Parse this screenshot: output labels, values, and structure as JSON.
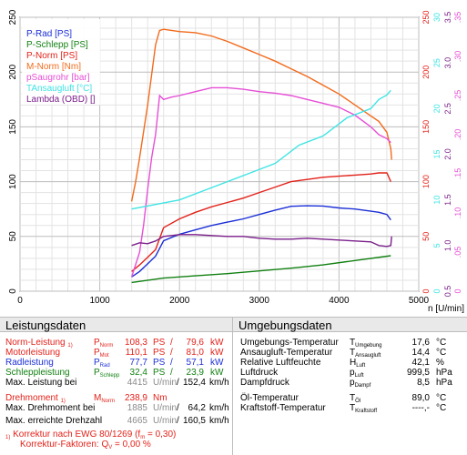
{
  "colors": {
    "rad": "#1b2fd6",
    "schlepp": "#128012",
    "norm": "#e32119",
    "mot": "#f26a1b",
    "saug": "#e64fd6",
    "ansaug": "#3fe4e4",
    "lambda": "#7a1f8a"
  },
  "chart_data": {
    "type": "line",
    "xlabel": "n [U/min]",
    "xlim": [
      0,
      5000
    ],
    "x_ticks": [
      "0",
      "1000",
      "2000",
      "3000",
      "4000",
      "5000"
    ],
    "ylim": [
      0,
      250
    ],
    "y_ticks": [
      "0",
      "50",
      "100",
      "150",
      "200",
      "250"
    ],
    "right_axes": [
      {
        "name": "P-Norm/M-Norm",
        "color": "#e32119",
        "ticks": [
          "0",
          "50",
          "100",
          "150",
          "200",
          "250"
        ]
      },
      {
        "name": "T Ansaugluft",
        "color": "#3fe4e4",
        "ticks": [
          "0",
          "5",
          "10",
          "15",
          "20",
          "25",
          "30"
        ]
      },
      {
        "name": "Lambda",
        "color": "#7a1f8a",
        "ticks": [
          "0.5",
          "1.0",
          "1.5",
          "2.0",
          "2.5",
          "3.0",
          "3.5"
        ]
      },
      {
        "name": "P Saugrohr",
        "color": "#e64fd6",
        "ticks": [
          "0",
          ".05",
          ".10",
          ".15",
          ".20",
          ".25",
          ".30",
          ".35"
        ]
      }
    ],
    "legend": [
      {
        "text": "P-Rad [PS]",
        "color": "#1b2fd6"
      },
      {
        "text": "P-Schlepp [PS]",
        "color": "#128012"
      },
      {
        "text": "P-Norm [PS]",
        "color": "#e32119"
      },
      {
        "text": "M-Norm [Nm]",
        "color": "#f26a1b"
      },
      {
        "text": "pSaugrohr [bar]",
        "color": "#e64fd6"
      },
      {
        "text": "TAnsaugluft [°C]",
        "color": "#3fe4e4"
      },
      {
        "text": "Lambda (OBD) []",
        "color": "#7a1f8a"
      }
    ],
    "legend_position": "top-left",
    "grid": true,
    "series": [
      {
        "name": "P-Rad [PS]",
        "key": "rad",
        "x": [
          1400,
          1500,
          1600,
          1700,
          1800,
          2000,
          2200,
          2400,
          2600,
          2800,
          3000,
          3200,
          3400,
          3600,
          3800,
          4000,
          4200,
          4400,
          4500,
          4600,
          4650
        ],
        "y": [
          13,
          18,
          25,
          32,
          46,
          52,
          56,
          60,
          63,
          66,
          70,
          74,
          77.5,
          78,
          77.7,
          76,
          75,
          73,
          72,
          70,
          65
        ]
      },
      {
        "name": "P-Schlepp [PS]",
        "key": "schlepp",
        "x": [
          1400,
          1800,
          2200,
          2600,
          3000,
          3400,
          3800,
          4200,
          4650
        ],
        "y": [
          8,
          12,
          14,
          16,
          18.5,
          21,
          24,
          28,
          32.4
        ]
      },
      {
        "name": "P-Norm [PS]",
        "key": "norm",
        "x": [
          1400,
          1500,
          1600,
          1700,
          1800,
          2000,
          2200,
          2400,
          2600,
          2800,
          3000,
          3200,
          3400,
          3600,
          3800,
          4000,
          4200,
          4400,
          4500,
          4600,
          4650
        ],
        "y": [
          18,
          24,
          31,
          38,
          58,
          66,
          72,
          77,
          81,
          85,
          90,
          95,
          100,
          102,
          104,
          105,
          106,
          107,
          108,
          108,
          100
        ]
      },
      {
        "name": "M-Norm [Nm]",
        "key": "mot",
        "x": [
          1400,
          1450,
          1500,
          1600,
          1700,
          1750,
          1800,
          1900,
          2000,
          2200,
          2400,
          2600,
          2800,
          3000,
          3200,
          3400,
          3600,
          3800,
          4000,
          4200,
          4400,
          4500,
          4600,
          4650,
          4660
        ],
        "y": [
          82,
          100,
          122,
          170,
          225,
          238,
          239,
          238,
          237,
          236,
          233,
          228,
          222,
          216,
          210,
          203,
          196,
          188,
          180,
          170,
          160,
          155,
          145,
          130,
          120
        ]
      },
      {
        "name": "pSaugrohr [bar]",
        "key": "saug",
        "x": [
          1400,
          1500,
          1550,
          1600,
          1650,
          1700,
          1750,
          1800,
          1900,
          2000,
          2200,
          2400,
          2600,
          2800,
          3000,
          3200,
          3400,
          3600,
          3800,
          4000,
          4200,
          4400,
          4500,
          4600,
          4650
        ],
        "y": [
          0.018,
          0.05,
          0.085,
          0.13,
          0.17,
          0.2,
          0.25,
          0.245,
          0.248,
          0.25,
          0.255,
          0.26,
          0.26,
          0.258,
          0.255,
          0.253,
          0.25,
          0.245,
          0.24,
          0.235,
          0.225,
          0.21,
          0.2,
          0.195,
          0.19
        ]
      },
      {
        "name": "TAnsaugluft [°C]",
        "key": "ansaug",
        "x": [
          1400,
          1700,
          2000,
          2300,
          2600,
          2900,
          3200,
          3500,
          3800,
          4100,
          4400,
          4500,
          4600,
          4650
        ],
        "y": [
          9,
          9.5,
          10,
          11,
          12,
          13,
          14,
          16,
          17,
          19,
          20,
          21,
          21.5,
          22
        ]
      },
      {
        "name": "Lambda (OBD) []",
        "key": "lambda",
        "x": [
          1400,
          1500,
          1600,
          1700,
          1800,
          2000,
          2200,
          2400,
          2600,
          2800,
          3000,
          3200,
          3400,
          3600,
          3800,
          4000,
          4200,
          4400,
          4500,
          4600,
          4650,
          4660
        ],
        "y": [
          1.0,
          1.03,
          1.02,
          1.05,
          1.1,
          1.12,
          1.12,
          1.11,
          1.1,
          1.1,
          1.08,
          1.07,
          1.07,
          1.08,
          1.07,
          1.06,
          1.05,
          1.04,
          1.0,
          0.99,
          1.0,
          1.1
        ]
      }
    ]
  },
  "leistung": {
    "title": "Leistungsdaten",
    "rows": [
      {
        "label": "Norm-Leistung",
        "footnote": "1)",
        "sym": "P",
        "sub": "Norm",
        "v1": "108,3",
        "u1": "PS",
        "slash": "/",
        "v2": "79,6",
        "u2": "kW",
        "color": "red"
      },
      {
        "label": "Motorleistung",
        "footnote": "",
        "sym": "P",
        "sub": "Mot",
        "v1": "110,1",
        "u1": "PS",
        "slash": "/",
        "v2": "81,0",
        "u2": "kW",
        "color": "red"
      },
      {
        "label": "Radleistung",
        "footnote": "",
        "sym": "P",
        "sub": "Rad",
        "v1": "77,7",
        "u1": "PS",
        "slash": "/",
        "v2": "57,1",
        "u2": "kW",
        "color": "blue"
      },
      {
        "label": "Schleppleistung",
        "footnote": "",
        "sym": "P",
        "sub": "Schlepp",
        "v1": "32,4",
        "u1": "PS",
        "slash": "/",
        "v2": "23,9",
        "u2": "kW",
        "color": "green"
      }
    ],
    "max_leistung": {
      "label": "Max. Leistung bei",
      "rpm": "4415",
      "unit": "U/min",
      "slash": "/",
      "speed": "152,4",
      "speed_unit": "km/h"
    },
    "drehmoment": {
      "label": "Drehmoment",
      "footnote": "1)",
      "sym": "M",
      "sub": "Norm",
      "value": "238,9",
      "unit": "Nm"
    },
    "max_drehmoment": {
      "label": "Max. Drehmoment bei",
      "rpm": "1885",
      "unit": "U/min",
      "slash": "/",
      "speed": "64,2",
      "speed_unit": "km/h"
    },
    "max_drehzahl": {
      "label": "Max. erreichte Drehzahl",
      "rpm": "4665",
      "unit": "U/min",
      "slash": "/",
      "speed": "160,5",
      "speed_unit": "km/h"
    },
    "korrektur": "Korrektur nach EWG 80/1269 (f",
    "korrektur_sub": "m",
    "korrektur_val": " = 0,30)",
    "korrektur_footnote": "1)",
    "faktoren": "Korrektur-Faktoren: Q",
    "faktoren_sub": "V",
    "faktoren_val": " =   0,00 %"
  },
  "umgebung": {
    "title": "Umgebungsdaten",
    "rows": [
      {
        "label": "Umgebungs-Temperatur",
        "sym": "T",
        "sub": "Umgebung",
        "value": "17,6",
        "unit": "°C"
      },
      {
        "label": "Ansaugluft-Temperatur",
        "sym": "T",
        "sub": "Ansaugluft",
        "value": "14,4",
        "unit": "°C"
      },
      {
        "label": "Relative Luftfeuchte",
        "sym": "H",
        "sub": "Luft",
        "value": "42,1",
        "unit": "%"
      },
      {
        "label": "Luftdruck",
        "sym": "p",
        "sub": "Luft",
        "value": "999,5",
        "unit": "hPa"
      },
      {
        "label": "Dampfdruck",
        "sym": "p",
        "sub": "Dampf",
        "value": "8,5",
        "unit": "hPa"
      },
      {
        "label": "Öl-Temperatur",
        "sym": "T",
        "sub": "Öl",
        "value": "89,0",
        "unit": "°C"
      },
      {
        "label": "Kraftstoff-Temperatur",
        "sym": "T",
        "sub": "Kraftstoff",
        "value": "----,-",
        "unit": "°C"
      }
    ]
  }
}
